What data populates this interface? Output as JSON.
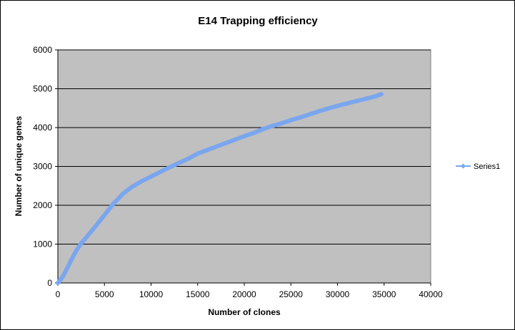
{
  "chart_data": {
    "type": "line",
    "title": "E14 Trapping efficiency",
    "xlabel": "Number of clones",
    "ylabel": "Number of unique genes",
    "xlim": [
      0,
      40000
    ],
    "ylim": [
      0,
      6000
    ],
    "x_ticks": [
      "0",
      "5000",
      "10000",
      "15000",
      "20000",
      "25000",
      "30000",
      "35000",
      "40000"
    ],
    "y_ticks": [
      "0",
      "1000",
      "2000",
      "3000",
      "4000",
      "5000",
      "6000"
    ],
    "grid": "horizontal",
    "plot_background": "#c0c0c0",
    "legend_position": "right",
    "series": [
      {
        "name": "Series1",
        "color": "#7aa6ee",
        "marker": "diamond",
        "x": [
          0,
          500,
          1000,
          1500,
          2000,
          2500,
          3000,
          4000,
          5000,
          6000,
          7000,
          8000,
          9000,
          10000,
          11000,
          12000,
          13000,
          14000,
          15000,
          16000,
          17000,
          18000,
          19000,
          20000,
          21000,
          22000,
          23000,
          24000,
          25000,
          26000,
          27000,
          28000,
          29000,
          30000,
          31000,
          32000,
          33000,
          34000,
          34700
        ],
        "y": [
          0,
          150,
          380,
          620,
          840,
          1020,
          1160,
          1450,
          1750,
          2050,
          2300,
          2480,
          2620,
          2740,
          2860,
          2980,
          3090,
          3200,
          3330,
          3420,
          3510,
          3600,
          3690,
          3780,
          3860,
          3960,
          4040,
          4110,
          4190,
          4260,
          4340,
          4420,
          4490,
          4560,
          4620,
          4680,
          4740,
          4800,
          4860
        ]
      }
    ]
  }
}
